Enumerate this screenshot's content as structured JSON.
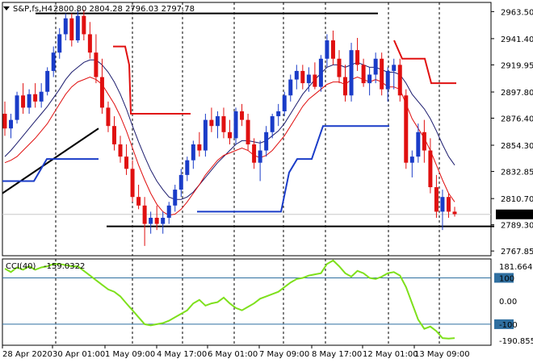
{
  "chart_data": {
    "type": "candlestick",
    "title": {
      "symbol": "S&P,fs,H4",
      "ohlc": "2800.80 2804.28 2796.03 2797.78"
    },
    "price_axis": {
      "ticks": [
        "2963.50",
        "2941.40",
        "2919.95",
        "2897.80",
        "2876.40",
        "2854.30",
        "2832.85",
        "2810.70",
        "2789.30",
        "2767.85"
      ],
      "ylim": [
        2764,
        2971
      ],
      "current_price": "2797.78"
    },
    "time_axis": {
      "labels": [
        "28 Apr 2020",
        "30 Apr 01:00",
        "1 May 09:00",
        "4 May 17:00",
        "6 May 01:00",
        "7 May 09:00",
        "8 May 17:00",
        "12 May 01:00",
        "13 May 09:00"
      ]
    },
    "candles": [
      [
        2880,
        2890,
        2862,
        2868
      ],
      [
        2868,
        2880,
        2860,
        2875
      ],
      [
        2875,
        2898,
        2872,
        2895
      ],
      [
        2895,
        2905,
        2880,
        2885
      ],
      [
        2885,
        2900,
        2880,
        2896
      ],
      [
        2896,
        2905,
        2885,
        2890
      ],
      [
        2890,
        2905,
        2885,
        2898
      ],
      [
        2898,
        2918,
        2895,
        2915
      ],
      [
        2915,
        2935,
        2910,
        2930
      ],
      [
        2930,
        2950,
        2925,
        2945
      ],
      [
        2945,
        2962,
        2940,
        2958
      ],
      [
        2958,
        2962,
        2935,
        2940
      ],
      [
        2940,
        2965,
        2938,
        2960
      ],
      [
        2960,
        2965,
        2940,
        2945
      ],
      [
        2945,
        2955,
        2925,
        2930
      ],
      [
        2930,
        2945,
        2905,
        2910
      ],
      [
        2910,
        2925,
        2880,
        2885
      ],
      [
        2885,
        2890,
        2865,
        2870
      ],
      [
        2870,
        2878,
        2850,
        2855
      ],
      [
        2855,
        2862,
        2840,
        2845
      ],
      [
        2845,
        2855,
        2830,
        2835
      ],
      [
        2835,
        2842,
        2808,
        2812
      ],
      [
        2812,
        2822,
        2802,
        2805
      ],
      [
        2805,
        2812,
        2772,
        2790
      ],
      [
        2790,
        2800,
        2782,
        2795
      ],
      [
        2795,
        2805,
        2785,
        2790
      ],
      [
        2790,
        2800,
        2782,
        2795
      ],
      [
        2795,
        2808,
        2790,
        2805
      ],
      [
        2805,
        2822,
        2800,
        2818
      ],
      [
        2818,
        2835,
        2812,
        2830
      ],
      [
        2830,
        2845,
        2825,
        2842
      ],
      [
        2842,
        2858,
        2835,
        2855
      ],
      [
        2855,
        2865,
        2845,
        2850
      ],
      [
        2850,
        2880,
        2845,
        2875
      ],
      [
        2875,
        2885,
        2865,
        2870
      ],
      [
        2870,
        2882,
        2860,
        2878
      ],
      [
        2878,
        2885,
        2860,
        2865
      ],
      [
        2865,
        2875,
        2855,
        2860
      ],
      [
        2860,
        2885,
        2855,
        2882
      ],
      [
        2882,
        2888,
        2870,
        2875
      ],
      [
        2875,
        2880,
        2850,
        2855
      ],
      [
        2855,
        2860,
        2835,
        2840
      ],
      [
        2840,
        2858,
        2825,
        2850
      ],
      [
        2850,
        2870,
        2845,
        2865
      ],
      [
        2865,
        2880,
        2860,
        2878
      ],
      [
        2878,
        2888,
        2870,
        2882
      ],
      [
        2882,
        2898,
        2878,
        2895
      ],
      [
        2895,
        2912,
        2890,
        2908
      ],
      [
        2908,
        2920,
        2900,
        2915
      ],
      [
        2915,
        2920,
        2900,
        2905
      ],
      [
        2905,
        2918,
        2898,
        2912
      ],
      [
        2912,
        2922,
        2900,
        2902
      ],
      [
        2902,
        2928,
        2898,
        2925
      ],
      [
        2925,
        2945,
        2918,
        2940
      ],
      [
        2940,
        2948,
        2920,
        2925
      ],
      [
        2925,
        2932,
        2905,
        2910
      ],
      [
        2910,
        2920,
        2890,
        2895
      ],
      [
        2895,
        2938,
        2890,
        2932
      ],
      [
        2932,
        2942,
        2915,
        2920
      ],
      [
        2920,
        2925,
        2902,
        2905
      ],
      [
        2905,
        2918,
        2895,
        2912
      ],
      [
        2912,
        2930,
        2905,
        2925
      ],
      [
        2925,
        2930,
        2895,
        2900
      ],
      [
        2900,
        2918,
        2890,
        2915
      ],
      [
        2915,
        2925,
        2900,
        2920
      ],
      [
        2920,
        2925,
        2890,
        2895
      ],
      [
        2895,
        2900,
        2835,
        2840
      ],
      [
        2840,
        2850,
        2828,
        2845
      ],
      [
        2845,
        2872,
        2840,
        2865
      ],
      [
        2865,
        2875,
        2840,
        2850
      ],
      [
        2850,
        2860,
        2815,
        2820
      ],
      [
        2820,
        2830,
        2795,
        2800
      ],
      [
        2800,
        2818,
        2785,
        2812
      ],
      [
        2812,
        2815,
        2795,
        2800
      ],
      [
        2800,
        2804,
        2796,
        2798
      ]
    ],
    "ma_slow": [
      2845,
      2850,
      2856,
      2862,
      2868,
      2874,
      2880,
      2886,
      2893,
      2900,
      2908,
      2914,
      2918,
      2922,
      2924,
      2924,
      2920,
      2914,
      2906,
      2896,
      2884,
      2870,
      2857,
      2845,
      2834,
      2825,
      2818,
      2812,
      2810,
      2810,
      2812,
      2816,
      2822,
      2828,
      2834,
      2840,
      2845,
      2850,
      2855,
      2858,
      2858,
      2857,
      2856,
      2858,
      2862,
      2866,
      2872,
      2880,
      2888,
      2896,
      2902,
      2908,
      2913,
      2918,
      2920,
      2920,
      2918,
      2920,
      2922,
      2920,
      2918,
      2918,
      2916,
      2914,
      2914,
      2912,
      2905,
      2896,
      2890,
      2884,
      2876,
      2866,
      2855,
      2845,
      2838
    ],
    "ma_fast": [
      2840,
      2842,
      2845,
      2850,
      2855,
      2860,
      2866,
      2872,
      2880,
      2888,
      2896,
      2902,
      2906,
      2908,
      2910,
      2908,
      2904,
      2896,
      2888,
      2878,
      2866,
      2852,
      2838,
      2826,
      2815,
      2806,
      2800,
      2797,
      2798,
      2802,
      2808,
      2815,
      2822,
      2830,
      2836,
      2842,
      2846,
      2848,
      2850,
      2852,
      2850,
      2846,
      2844,
      2846,
      2850,
      2856,
      2862,
      2870,
      2878,
      2886,
      2892,
      2896,
      2900,
      2904,
      2906,
      2906,
      2904,
      2908,
      2910,
      2908,
      2906,
      2908,
      2906,
      2902,
      2902,
      2900,
      2888,
      2876,
      2868,
      2860,
      2850,
      2838,
      2826,
      2815,
      2808
    ],
    "cci": {
      "label": "CCI(40)",
      "value_text": "-159.0322",
      "scale": {
        "top": "181.6643",
        "bottom": "-190.8553",
        "ticks": [
          "100",
          "0.00",
          "-100"
        ]
      },
      "values": [
        140,
        125,
        145,
        135,
        150,
        135,
        145,
        150,
        160,
        160,
        155,
        150,
        150,
        130,
        110,
        90,
        70,
        50,
        40,
        20,
        -10,
        -40,
        -70,
        -100,
        -105,
        -100,
        -95,
        -85,
        -70,
        -55,
        -40,
        -10,
        5,
        -20,
        -10,
        -5,
        15,
        -10,
        -30,
        -40,
        -25,
        -10,
        10,
        20,
        30,
        40,
        60,
        80,
        95,
        100,
        110,
        115,
        120,
        160,
        175,
        150,
        120,
        105,
        130,
        120,
        100,
        95,
        105,
        120,
        125,
        110,
        60,
        -10,
        -80,
        -120,
        -110,
        -130,
        -160,
        -162,
        -160
      ]
    },
    "annotations": {
      "trendlines": [
        {
          "name": "resistance",
          "y": 2962
        },
        {
          "name": "support",
          "y": 2788
        },
        {
          "name": "rising-trendline",
          "y_start": 2815,
          "y_end": 2868
        }
      ],
      "red_stops": [
        2880,
        2880,
        2910,
        2935,
        2920,
        2905
      ],
      "blue_stops": [
        2843,
        2843,
        2800,
        2820,
        2870
      ]
    },
    "colors": {
      "bull": "#1a3cc8",
      "bear": "#e01010",
      "ma_slow": "#1c1c6e",
      "ma_fast": "#e01010",
      "cci": "#7ee01c",
      "grid": "#bfc6d2"
    },
    "grid": "dashed"
  }
}
